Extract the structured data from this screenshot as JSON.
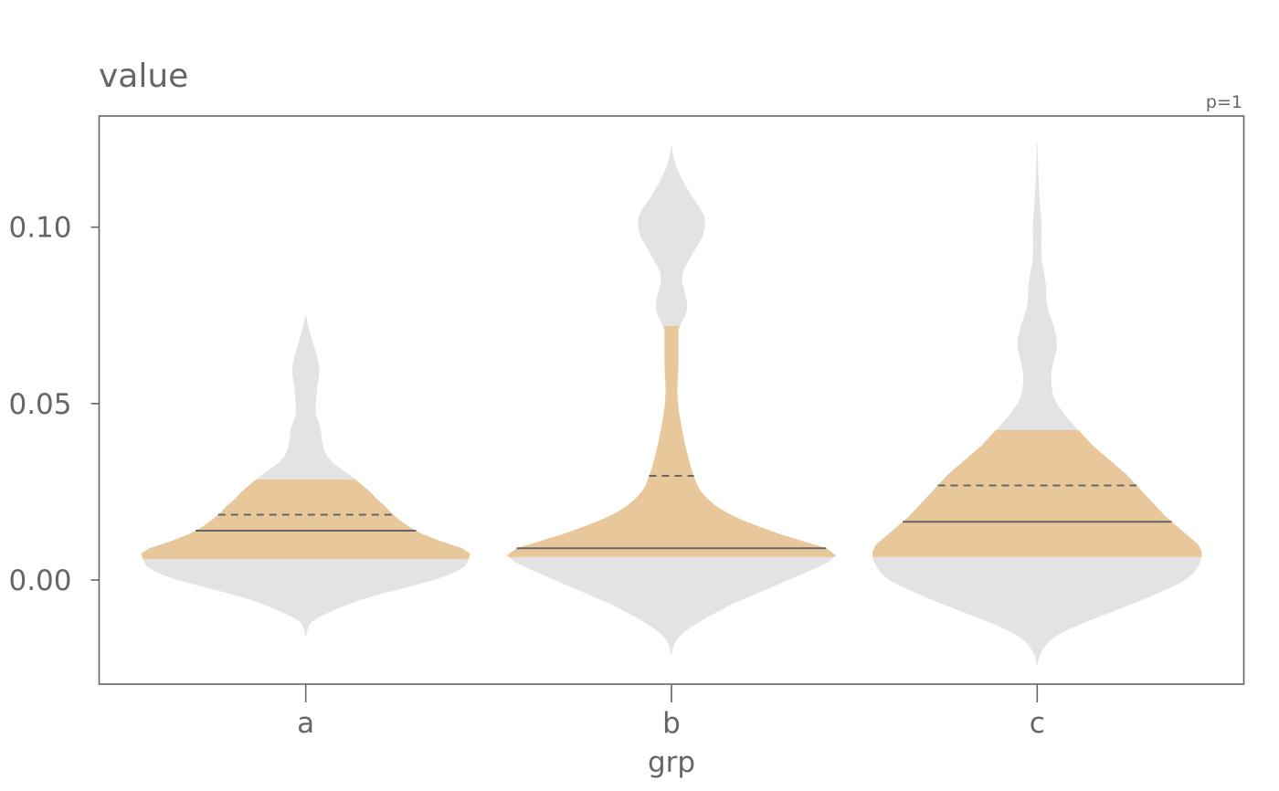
{
  "chart_data": {
    "type": "violin",
    "title": "value",
    "annotation": "p=1",
    "xlabel": "grp",
    "ylabel": "",
    "categories": [
      "a",
      "b",
      "c"
    ],
    "yticks": [
      0.0,
      0.05,
      0.1
    ],
    "ytick_labels": [
      "0.00",
      "0.05",
      "0.10"
    ],
    "ylim": [
      -0.0295,
      0.1315
    ],
    "grid": false,
    "colors": {
      "density": "#e3e3e3",
      "band": "#e8c89a",
      "line": "#666666",
      "frame": "#666666"
    },
    "groups": [
      {
        "name": "a",
        "band": [
          0.006,
          0.0285
        ],
        "median": 0.014,
        "mean": 0.0185,
        "profile": [
          [
            -0.016,
            0.003
          ],
          [
            -0.014,
            0.01
          ],
          [
            -0.012,
            0.03
          ],
          [
            -0.01,
            0.1
          ],
          [
            -0.008,
            0.2
          ],
          [
            -0.006,
            0.31
          ],
          [
            -0.004,
            0.45
          ],
          [
            -0.002,
            0.62
          ],
          [
            0.0,
            0.78
          ],
          [
            0.002,
            0.9
          ],
          [
            0.004,
            0.97
          ],
          [
            0.006,
            0.99
          ],
          [
            0.0075,
            1.0
          ],
          [
            0.009,
            0.95
          ],
          [
            0.011,
            0.82
          ],
          [
            0.013,
            0.71
          ],
          [
            0.015,
            0.63
          ],
          [
            0.017,
            0.57
          ],
          [
            0.019,
            0.52
          ],
          [
            0.021,
            0.48
          ],
          [
            0.023,
            0.43
          ],
          [
            0.025,
            0.39
          ],
          [
            0.027,
            0.34
          ],
          [
            0.029,
            0.29
          ],
          [
            0.031,
            0.23
          ],
          [
            0.033,
            0.17
          ],
          [
            0.035,
            0.13
          ],
          [
            0.037,
            0.11
          ],
          [
            0.039,
            0.1
          ],
          [
            0.041,
            0.095
          ],
          [
            0.043,
            0.09
          ],
          [
            0.045,
            0.075
          ],
          [
            0.047,
            0.06
          ],
          [
            0.049,
            0.06
          ],
          [
            0.051,
            0.062
          ],
          [
            0.053,
            0.068
          ],
          [
            0.055,
            0.07
          ],
          [
            0.057,
            0.077
          ],
          [
            0.059,
            0.083
          ],
          [
            0.061,
            0.08
          ],
          [
            0.063,
            0.07
          ],
          [
            0.065,
            0.058
          ],
          [
            0.067,
            0.045
          ],
          [
            0.069,
            0.033
          ],
          [
            0.071,
            0.02
          ],
          [
            0.073,
            0.01
          ],
          [
            0.075,
            0.002
          ]
        ]
      },
      {
        "name": "b",
        "band": [
          0.0065,
          0.072
        ],
        "median": 0.009,
        "mean": 0.0295,
        "profile": [
          [
            -0.021,
            0.003
          ],
          [
            -0.019,
            0.01
          ],
          [
            -0.017,
            0.03
          ],
          [
            -0.015,
            0.07
          ],
          [
            -0.013,
            0.13
          ],
          [
            -0.011,
            0.2
          ],
          [
            -0.009,
            0.28
          ],
          [
            -0.007,
            0.36
          ],
          [
            -0.005,
            0.46
          ],
          [
            -0.003,
            0.56
          ],
          [
            -0.001,
            0.66
          ],
          [
            0.001,
            0.76
          ],
          [
            0.003,
            0.86
          ],
          [
            0.005,
            0.95
          ],
          [
            0.007,
            1.0
          ],
          [
            0.009,
            0.94
          ],
          [
            0.011,
            0.8
          ],
          [
            0.013,
            0.66
          ],
          [
            0.015,
            0.54
          ],
          [
            0.017,
            0.43
          ],
          [
            0.019,
            0.34
          ],
          [
            0.021,
            0.27
          ],
          [
            0.023,
            0.22
          ],
          [
            0.025,
            0.18
          ],
          [
            0.027,
            0.155
          ],
          [
            0.029,
            0.14
          ],
          [
            0.031,
            0.125
          ],
          [
            0.033,
            0.112
          ],
          [
            0.035,
            0.1
          ],
          [
            0.037,
            0.09
          ],
          [
            0.039,
            0.08
          ],
          [
            0.041,
            0.072
          ],
          [
            0.043,
            0.063
          ],
          [
            0.045,
            0.055
          ],
          [
            0.047,
            0.048
          ],
          [
            0.049,
            0.042
          ],
          [
            0.051,
            0.038
          ],
          [
            0.053,
            0.036
          ],
          [
            0.055,
            0.036
          ],
          [
            0.057,
            0.038
          ],
          [
            0.059,
            0.04
          ],
          [
            0.061,
            0.042
          ],
          [
            0.063,
            0.042
          ],
          [
            0.065,
            0.042
          ],
          [
            0.067,
            0.042
          ],
          [
            0.069,
            0.042
          ],
          [
            0.071,
            0.042
          ],
          [
            0.073,
            0.06
          ],
          [
            0.075,
            0.085
          ],
          [
            0.077,
            0.095
          ],
          [
            0.079,
            0.093
          ],
          [
            0.081,
            0.085
          ],
          [
            0.083,
            0.072
          ],
          [
            0.085,
            0.063
          ],
          [
            0.087,
            0.068
          ],
          [
            0.089,
            0.085
          ],
          [
            0.091,
            0.112
          ],
          [
            0.093,
            0.135
          ],
          [
            0.095,
            0.16
          ],
          [
            0.097,
            0.185
          ],
          [
            0.099,
            0.2
          ],
          [
            0.101,
            0.205
          ],
          [
            0.103,
            0.2
          ],
          [
            0.105,
            0.18
          ],
          [
            0.107,
            0.15
          ],
          [
            0.109,
            0.12
          ],
          [
            0.111,
            0.095
          ],
          [
            0.113,
            0.07
          ],
          [
            0.115,
            0.05
          ],
          [
            0.117,
            0.03
          ],
          [
            0.119,
            0.017
          ],
          [
            0.121,
            0.007
          ],
          [
            0.123,
            0.002
          ]
        ]
      },
      {
        "name": "c",
        "band": [
          0.0065,
          0.0425
        ],
        "median": 0.0165,
        "mean": 0.0268,
        "profile": [
          [
            -0.024,
            0.003
          ],
          [
            -0.022,
            0.01
          ],
          [
            -0.02,
            0.03
          ],
          [
            -0.018,
            0.06
          ],
          [
            -0.016,
            0.11
          ],
          [
            -0.014,
            0.19
          ],
          [
            -0.012,
            0.29
          ],
          [
            -0.01,
            0.4
          ],
          [
            -0.008,
            0.51
          ],
          [
            -0.006,
            0.62
          ],
          [
            -0.004,
            0.72
          ],
          [
            -0.002,
            0.82
          ],
          [
            0.0,
            0.9
          ],
          [
            0.002,
            0.95
          ],
          [
            0.004,
            0.98
          ],
          [
            0.006,
            1.0
          ],
          [
            0.008,
            1.0
          ],
          [
            0.01,
            0.98
          ],
          [
            0.012,
            0.93
          ],
          [
            0.014,
            0.88
          ],
          [
            0.016,
            0.83
          ],
          [
            0.018,
            0.78
          ],
          [
            0.02,
            0.74
          ],
          [
            0.022,
            0.7
          ],
          [
            0.024,
            0.66
          ],
          [
            0.026,
            0.62
          ],
          [
            0.028,
            0.58
          ],
          [
            0.03,
            0.54
          ],
          [
            0.032,
            0.49
          ],
          [
            0.034,
            0.44
          ],
          [
            0.036,
            0.39
          ],
          [
            0.038,
            0.34
          ],
          [
            0.04,
            0.3
          ],
          [
            0.042,
            0.26
          ],
          [
            0.044,
            0.22
          ],
          [
            0.046,
            0.18
          ],
          [
            0.048,
            0.15
          ],
          [
            0.05,
            0.12
          ],
          [
            0.052,
            0.1
          ],
          [
            0.054,
            0.09
          ],
          [
            0.056,
            0.085
          ],
          [
            0.058,
            0.085
          ],
          [
            0.06,
            0.09
          ],
          [
            0.062,
            0.1
          ],
          [
            0.064,
            0.11
          ],
          [
            0.066,
            0.12
          ],
          [
            0.068,
            0.12
          ],
          [
            0.07,
            0.11
          ],
          [
            0.072,
            0.1
          ],
          [
            0.074,
            0.085
          ],
          [
            0.076,
            0.07
          ],
          [
            0.078,
            0.06
          ],
          [
            0.08,
            0.055
          ],
          [
            0.082,
            0.055
          ],
          [
            0.084,
            0.052
          ],
          [
            0.086,
            0.045
          ],
          [
            0.088,
            0.038
          ],
          [
            0.09,
            0.03
          ],
          [
            0.092,
            0.026
          ],
          [
            0.094,
            0.024
          ],
          [
            0.096,
            0.025
          ],
          [
            0.098,
            0.026
          ],
          [
            0.1,
            0.026
          ],
          [
            0.102,
            0.025
          ],
          [
            0.104,
            0.022
          ],
          [
            0.106,
            0.018
          ],
          [
            0.108,
            0.015
          ],
          [
            0.11,
            0.012
          ],
          [
            0.112,
            0.01
          ],
          [
            0.114,
            0.008
          ],
          [
            0.116,
            0.007
          ],
          [
            0.118,
            0.006
          ],
          [
            0.12,
            0.004
          ],
          [
            0.122,
            0.003
          ],
          [
            0.124,
            0.001
          ]
        ]
      }
    ]
  }
}
